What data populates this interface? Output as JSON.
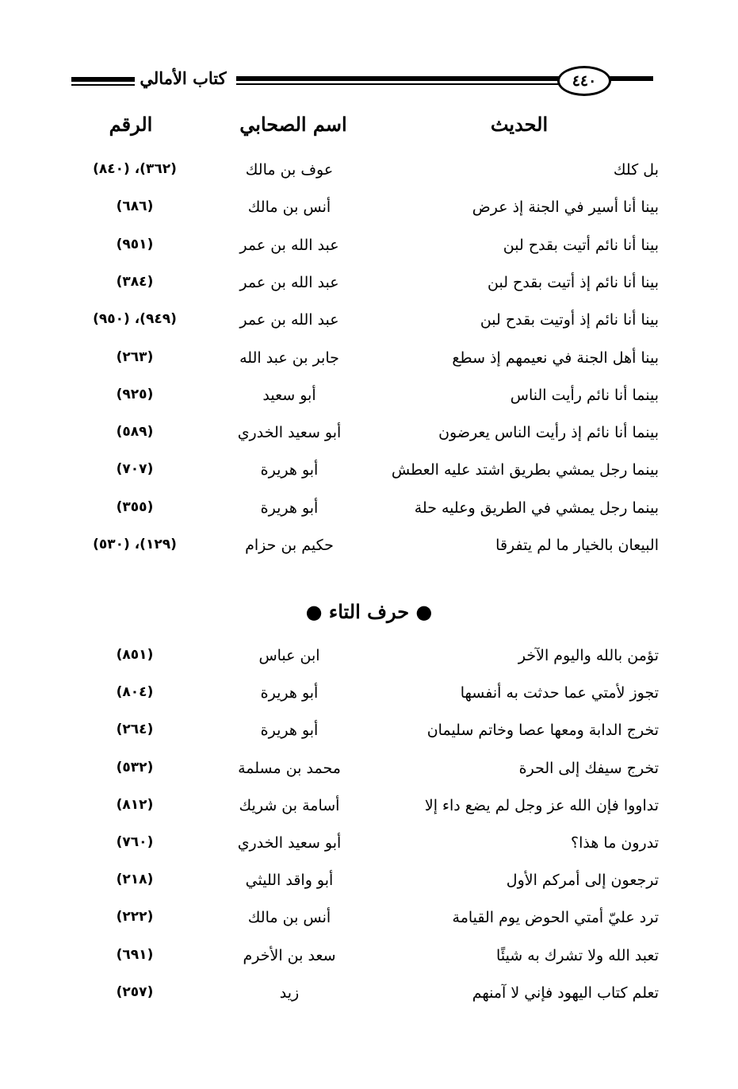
{
  "header": {
    "book_title": "كتاب الأمالي",
    "page_number": "٤٤٠"
  },
  "columns": {
    "hadith": "الحديث",
    "companion": "اسم الصحابي",
    "number": "الرقم"
  },
  "section1": [
    {
      "hadith": "بل كلك",
      "companion": "عوف بن مالك",
      "number": "(٣٦٢)، (٨٤٠)"
    },
    {
      "hadith": "بينا أنا أسير في الجنة إذ عرض",
      "companion": "أنس بن مالك",
      "number": "(٦٨٦)"
    },
    {
      "hadith": "بينا أنا نائم أتيت بقدح لبن",
      "companion": "عبد الله بن عمر",
      "number": "(٩٥١)"
    },
    {
      "hadith": "بينا أنا نائم إذ أتيت بقدح لبن",
      "companion": "عبد الله بن عمر",
      "number": "(٣٨٤)"
    },
    {
      "hadith": "بينا أنا نائم إذ أوتيت بقدح لبن",
      "companion": "عبد الله بن عمر",
      "number": "(٩٤٩)، (٩٥٠)"
    },
    {
      "hadith": "بينا أهل الجنة في نعيمهم إذ سطع",
      "companion": "جابر بن عبد الله",
      "number": "(٢٦٣)"
    },
    {
      "hadith": "بينما أنا نائم رأيت الناس",
      "companion": "أبو سعيد",
      "number": "(٩٢٥)"
    },
    {
      "hadith": "بينما أنا نائم إذ رأيت الناس يعرضون",
      "companion": "أبو سعيد الخدري",
      "number": "(٥٨٩)"
    },
    {
      "hadith": "بينما رجل يمشي بطريق اشتد عليه العطش",
      "companion": "أبو هريرة",
      "number": "(٧٠٧)"
    },
    {
      "hadith": "بينما رجل يمشي في الطريق وعليه حلة",
      "companion": "أبو هريرة",
      "number": "(٣٥٥)"
    },
    {
      "hadith": "البيعان بالخيار ما لم يتفرقا",
      "companion": "حكيم بن حزام",
      "number": "(١٢٩)، (٥٣٠)"
    }
  ],
  "section2_title": "● حرف التاء ●",
  "section2": [
    {
      "hadith": "تؤمن بالله واليوم الآخر",
      "companion": "ابن عباس",
      "number": "(٨٥١)"
    },
    {
      "hadith": "تجوز لأمتي عما حدثت به أنفسها",
      "companion": "أبو هريرة",
      "number": "(٨٠٤)"
    },
    {
      "hadith": "تخرج الدابة ومعها عصا وخاتم سليمان",
      "companion": "أبو هريرة",
      "number": "(٢٦٤)"
    },
    {
      "hadith": "تخرج سيفك إلى الحرة",
      "companion": "محمد بن مسلمة",
      "number": "(٥٣٢)"
    },
    {
      "hadith": "تداووا فإن الله عز وجل لم يضع داء إلا",
      "companion": "أسامة بن شريك",
      "number": "(٨١٢)"
    },
    {
      "hadith": "تدرون ما هذا؟",
      "companion": "أبو سعيد الخدري",
      "number": "(٧٦٠)"
    },
    {
      "hadith": "ترجعون إلى أمركم الأول",
      "companion": "أبو واقد الليثي",
      "number": "(٢١٨)"
    },
    {
      "hadith": "ترد عليّ أمتي الحوض يوم القيامة",
      "companion": "أنس بن مالك",
      "number": "(٢٢٢)"
    },
    {
      "hadith": "تعبد الله ولا تشرك به شيئًا",
      "companion": "سعد بن الأخرم",
      "number": "(٦٩١)"
    },
    {
      "hadith": "تعلم كتاب اليهود فإني لا آمنهم",
      "companion": "زيد",
      "number": "(٢٥٧)"
    }
  ]
}
